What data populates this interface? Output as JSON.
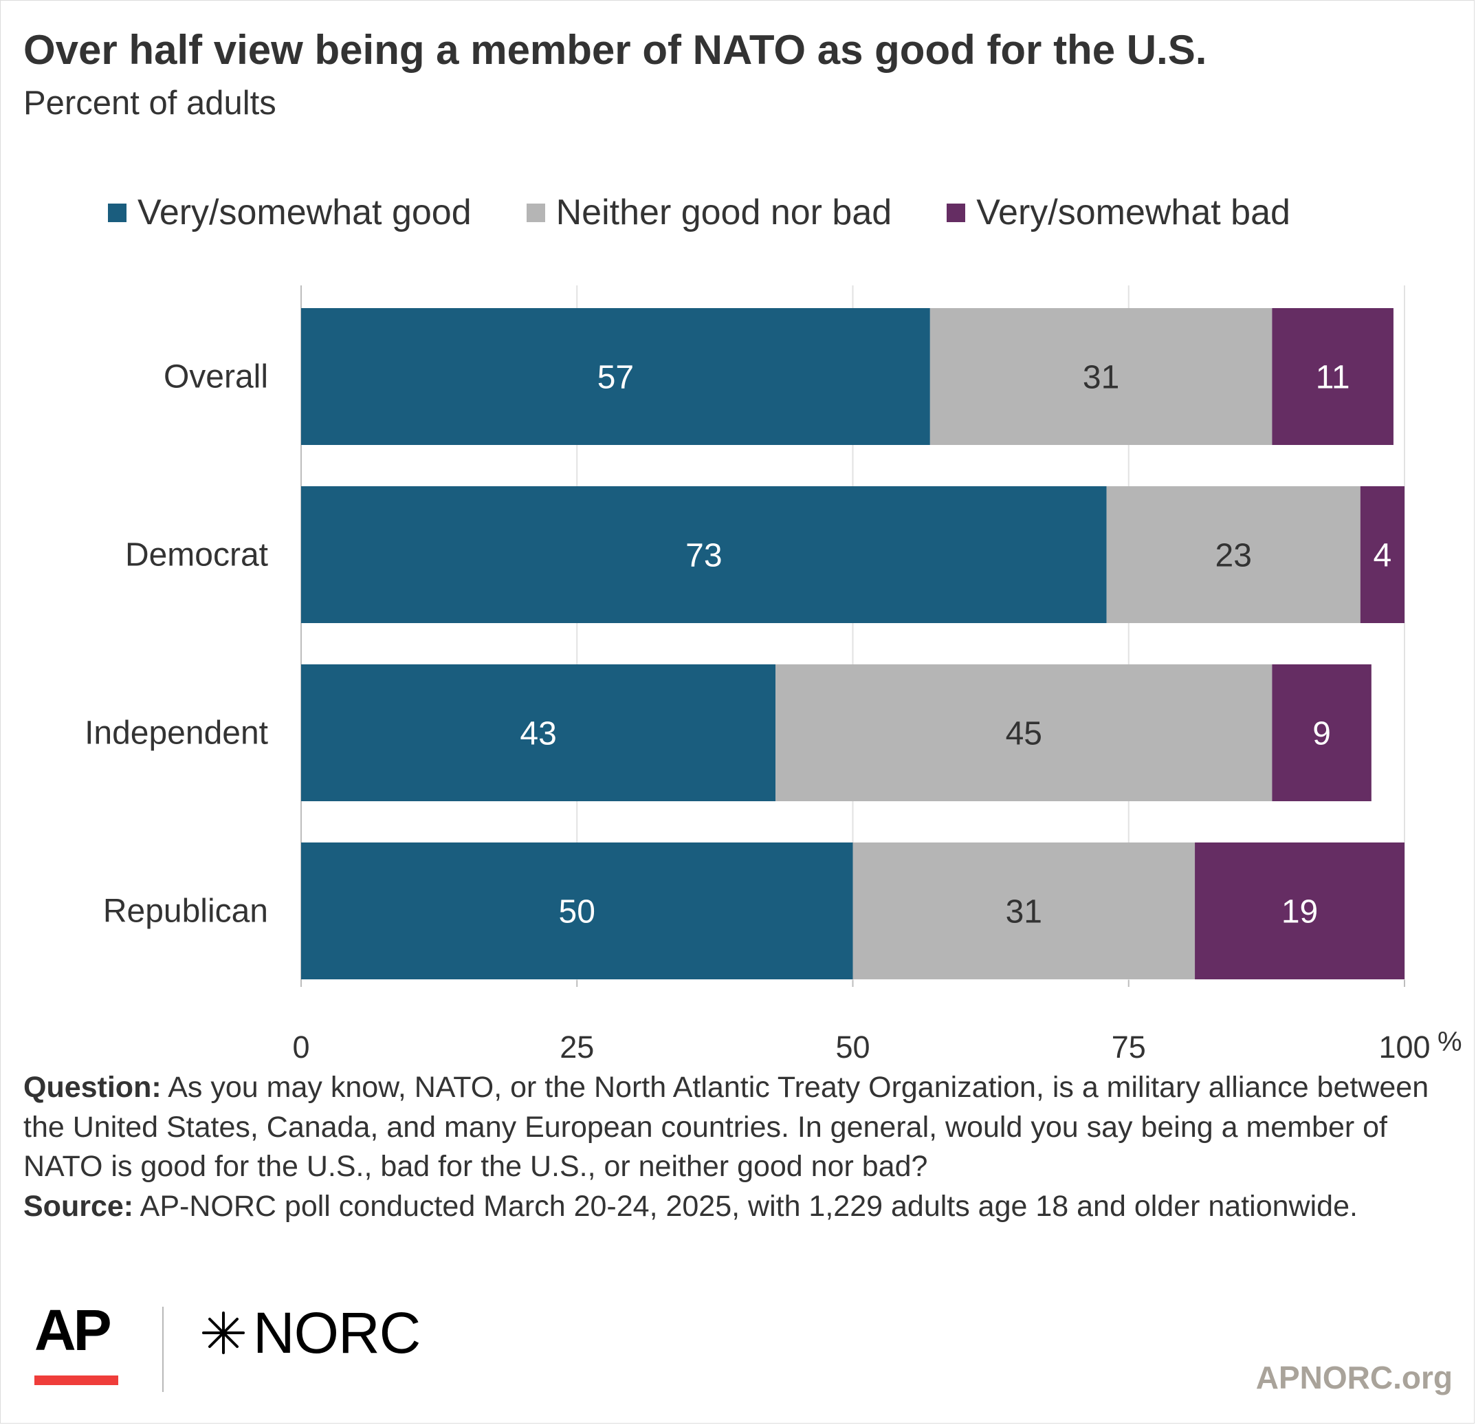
{
  "title": "Over half view being a member of NATO as good for the U.S.",
  "subtitle": "Percent of adults",
  "legend": [
    {
      "label": "Very/somewhat good",
      "color": "#1a5d7e"
    },
    {
      "label": "Neither good nor bad",
      "color": "#b5b5b5"
    },
    {
      "label": "Very/somewhat bad",
      "color": "#652d63"
    }
  ],
  "chart_data": {
    "type": "bar",
    "orientation": "horizontal",
    "stacked": true,
    "categories": [
      "Overall",
      "Democrat",
      "Independent",
      "Republican"
    ],
    "series": [
      {
        "name": "Very/somewhat good",
        "values": [
          57,
          73,
          43,
          50
        ],
        "color": "#1a5d7e",
        "label_color": "#ffffff"
      },
      {
        "name": "Neither good nor bad",
        "values": [
          31,
          23,
          45,
          31
        ],
        "color": "#b5b5b5",
        "label_color": "#333333"
      },
      {
        "name": "Very/somewhat bad",
        "values": [
          11,
          4,
          9,
          19
        ],
        "color": "#652d63",
        "label_color": "#ffffff"
      }
    ],
    "xlim": [
      0,
      100
    ],
    "xticks": [
      0,
      25,
      50,
      75,
      100
    ],
    "xtick_labels": [
      "0",
      "25",
      "50",
      "75",
      "100"
    ],
    "x_unit": "%",
    "grid": true,
    "legend_position": "top"
  },
  "footnote": {
    "question_label": "Question:",
    "question_text": " As you may know, NATO, or the North Atlantic Treaty Organization, is a military alliance between the United States, Canada, and many European countries. In general, would you say being a member of NATO is good for the U.S., bad for the U.S., or neither good nor bad?",
    "source_label": "Source:",
    "source_text": " AP-NORC poll conducted March 20-24, 2025, with 1,229 adults age 18 and older nationwide."
  },
  "logos": {
    "ap": "AP",
    "norc": "NORC",
    "norc_icon": "star-burst-icon"
  },
  "site": "APNORC.org"
}
